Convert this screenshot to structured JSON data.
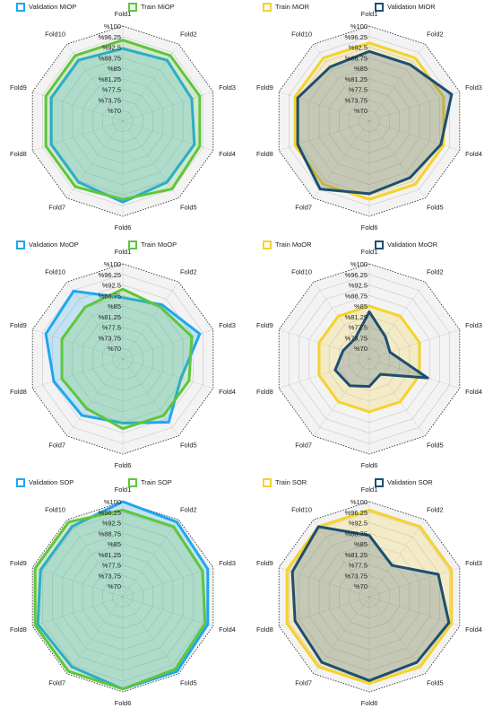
{
  "chart_data": [
    {
      "type": "radar",
      "categories": [
        "Fold1",
        "Fold2",
        "Fold3",
        "Fold4",
        "Fold5",
        "Fold6",
        "Fold7",
        "Fold8",
        "Fold9",
        "Fold10"
      ],
      "series": [
        {
          "name": "Validation MiOP",
          "color": "#1ea7f0",
          "values": [
            92,
            93,
            92,
            93,
            93,
            95,
            93,
            93,
            93,
            93
          ]
        },
        {
          "name": "Train MiOP",
          "color": "#5ec63b",
          "values": [
            95,
            95,
            95,
            95,
            96,
            94,
            95,
            95,
            95,
            95
          ]
        }
      ],
      "rlim": [
        66.25,
        100
      ],
      "rticks": [
        {
          "value": 100,
          "label": "%100"
        },
        {
          "value": 96.25,
          "label": "%96.25"
        },
        {
          "value": 92.5,
          "label": "%92.5"
        },
        {
          "value": 88.75,
          "label": "%88.75"
        },
        {
          "value": 85,
          "label": "%85"
        },
        {
          "value": 81.25,
          "label": "%81.25"
        },
        {
          "value": 77.5,
          "label": "%77.5"
        },
        {
          "value": 73.75,
          "label": "%73.75"
        },
        {
          "value": 70,
          "label": "%70"
        }
      ]
    },
    {
      "type": "radar",
      "categories": [
        "Fold1",
        "Fold2",
        "Fold3",
        "Fold4",
        "Fold5",
        "Fold6",
        "Fold7",
        "Fold8",
        "Fold9",
        "Fold10"
      ],
      "series": [
        {
          "name": "Train MiOR",
          "color": "#f5d22e",
          "values": [
            94,
            94,
            94,
            94,
            94,
            94,
            94,
            94,
            94,
            94
          ]
        },
        {
          "name": "Validation MiOR",
          "color": "#1e4e70",
          "values": [
            91,
            91,
            97,
            93,
            91,
            92,
            96,
            93,
            93,
            90
          ]
        }
      ],
      "rlim": [
        66.25,
        100
      ],
      "rticks": [
        {
          "value": 100,
          "label": "%100"
        },
        {
          "value": 96.25,
          "label": "%96.25"
        },
        {
          "value": 92.5,
          "label": "%92.5"
        },
        {
          "value": 88.75,
          "label": "%88.75"
        },
        {
          "value": 85,
          "label": "%85"
        },
        {
          "value": 81.25,
          "label": "%81.25"
        },
        {
          "value": 77.5,
          "label": "%77.5"
        },
        {
          "value": 73.75,
          "label": "%73.75"
        },
        {
          "value": 70,
          "label": "%70"
        }
      ]
    },
    {
      "type": "radar",
      "categories": [
        "Fold1",
        "Fold2",
        "Fold3",
        "Fold4",
        "Fold5",
        "Fold6",
        "Fold7",
        "Fold8",
        "Fold9",
        "Fold10"
      ],
      "series": [
        {
          "name": "Validation MoOP",
          "color": "#1ea7f0",
          "values": [
            88,
            90,
            95,
            88,
            94,
            89,
            91,
            92,
            95,
            96
          ]
        },
        {
          "name": "Train MoOP",
          "color": "#5ec63b",
          "values": [
            91,
            89,
            92,
            91,
            91,
            91,
            88,
            89,
            89,
            89
          ]
        }
      ],
      "rlim": [
        66.25,
        100
      ],
      "rticks": [
        {
          "value": 100,
          "label": "%100"
        },
        {
          "value": 96.25,
          "label": "%96.25"
        },
        {
          "value": 92.5,
          "label": "%92.5"
        },
        {
          "value": 88.75,
          "label": "%88.75"
        },
        {
          "value": 85,
          "label": "%85"
        },
        {
          "value": 81.25,
          "label": "%81.25"
        },
        {
          "value": 77.5,
          "label": "%77.5"
        },
        {
          "value": 73.75,
          "label": "%73.75"
        },
        {
          "value": 70,
          "label": "%70"
        }
      ]
    },
    {
      "type": "radar",
      "categories": [
        "Fold1",
        "Fold2",
        "Fold3",
        "Fold4",
        "Fold5",
        "Fold6",
        "Fold7",
        "Fold8",
        "Fold9",
        "Fold10"
      ],
      "series": [
        {
          "name": "Train MoOR",
          "color": "#f5d22e",
          "values": [
            85,
            85,
            85,
            85,
            85,
            85,
            85,
            85,
            85,
            85
          ]
        },
        {
          "name": "Validation MoOR",
          "color": "#1e4e70",
          "values": [
            83,
            76,
            74,
            88,
            73,
            76,
            78,
            79,
            76,
            75
          ]
        }
      ],
      "rlim": [
        66.25,
        100
      ],
      "rticks": [
        {
          "value": 100,
          "label": "%100"
        },
        {
          "value": 96.25,
          "label": "%96.25"
        },
        {
          "value": 92.5,
          "label": "%92.5"
        },
        {
          "value": 88.75,
          "label": "%88.75"
        },
        {
          "value": 85,
          "label": "%85"
        },
        {
          "value": 81.25,
          "label": "%81.25"
        },
        {
          "value": 77.5,
          "label": "%77.5"
        },
        {
          "value": 73.75,
          "label": "%73.75"
        },
        {
          "value": 70,
          "label": "%70"
        }
      ]
    },
    {
      "type": "radar",
      "categories": [
        "Fold1",
        "Fold2",
        "Fold3",
        "Fold4",
        "Fold5",
        "Fold6",
        "Fold7",
        "Fold8",
        "Fold9",
        "Fold10"
      ],
      "series": [
        {
          "name": "Validation SOP",
          "color": "#1ea7f0",
          "values": [
            100,
            99,
            98,
            98,
            99,
            99,
            97,
            98,
            97,
            97
          ]
        },
        {
          "name": "Train SOP",
          "color": "#5ec63b",
          "values": [
            97,
            97,
            96,
            97,
            98,
            99,
            99,
            99,
            99,
            99
          ]
        }
      ],
      "rlim": [
        66.25,
        100
      ],
      "rticks": [
        {
          "value": 100,
          "label": "%100"
        },
        {
          "value": 96.25,
          "label": "%96.25"
        },
        {
          "value": 92.5,
          "label": "%92.5"
        },
        {
          "value": 88.75,
          "label": "%88.75"
        },
        {
          "value": 85,
          "label": "%85"
        },
        {
          "value": 81.25,
          "label": "%81.25"
        },
        {
          "value": 77.5,
          "label": "%77.5"
        },
        {
          "value": 73.75,
          "label": "%73.75"
        },
        {
          "value": 70,
          "label": "%70"
        }
      ]
    },
    {
      "type": "radar",
      "categories": [
        "Fold1",
        "Fold2",
        "Fold3",
        "Fold4",
        "Fold5",
        "Fold6",
        "Fold7",
        "Fold8",
        "Fold9",
        "Fold10"
      ],
      "series": [
        {
          "name": "Train SOR",
          "color": "#f5d22e",
          "values": [
            97,
            97,
            97,
            97,
            97,
            97,
            97,
            97,
            97,
            97
          ]
        },
        {
          "name": "Validation SOR",
          "color": "#1e4e70",
          "values": [
            88,
            80,
            92,
            96,
            95,
            96,
            95,
            94,
            95,
            97
          ]
        }
      ],
      "rlim": [
        66.25,
        100
      ],
      "rticks": [
        {
          "value": 100,
          "label": "%100"
        },
        {
          "value": 96.25,
          "label": "%96.25"
        },
        {
          "value": 92.5,
          "label": "%92.5"
        },
        {
          "value": 88.75,
          "label": "%88.75"
        },
        {
          "value": 85,
          "label": "%85"
        },
        {
          "value": 81.25,
          "label": "%81.25"
        },
        {
          "value": 77.5,
          "label": "%77.5"
        },
        {
          "value": 73.75,
          "label": "%73.75"
        },
        {
          "value": 70,
          "label": "%70"
        }
      ]
    }
  ]
}
